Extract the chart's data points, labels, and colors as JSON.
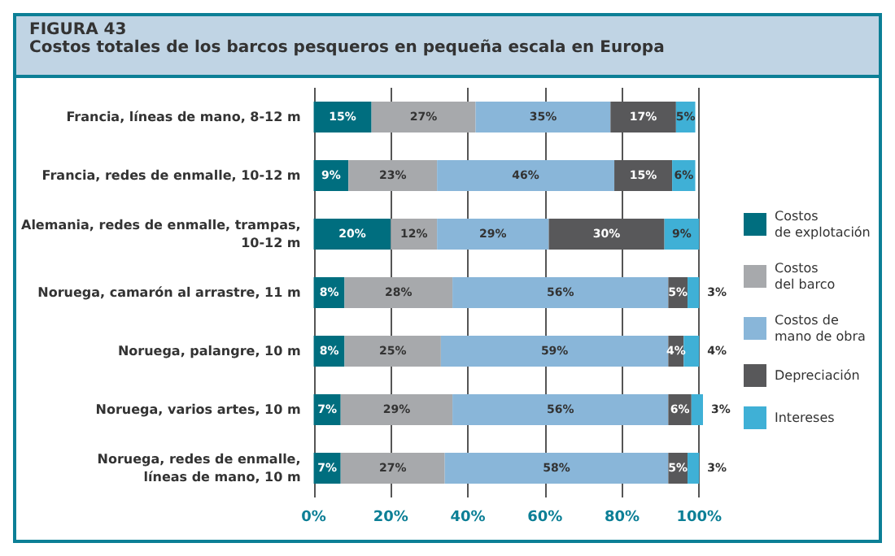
{
  "chart_data": {
    "type": "bar",
    "orientation": "horizontal",
    "stacked": true,
    "title": "FIGURA 43",
    "subtitle": "Costos totales de los barcos pesqueros en pequeña escala en Europa",
    "categories": [
      "Francia, líneas de mano, 8-12 m",
      "Francia, redes de enmalle, 10-12 m",
      "Alemania, redes de enmalle, trampas,\n10-12 m",
      "Noruega, camarón al arrastre, 11 m",
      "Noruega, palangre, 10 m",
      "Noruega, varios artes, 10 m",
      "Noruega, redes de enmalle,\nlíneas de mano, 10 m"
    ],
    "series": [
      {
        "name": "Costos\nde explotación",
        "color": "#006e7f",
        "values": [
          15,
          9,
          20,
          8,
          8,
          7,
          7
        ],
        "value_labels": [
          "15%",
          "9%",
          "20%",
          "8%",
          "8%",
          "7%",
          "7%"
        ]
      },
      {
        "name": "Costos\ndel barco",
        "color": "#a7a9ac",
        "values": [
          27,
          23,
          12,
          28,
          25,
          29,
          27
        ],
        "value_labels": [
          "27%",
          "23%",
          "12%",
          "28%",
          "25%",
          "29%",
          "27%"
        ]
      },
      {
        "name": "Costos de\nmano de obra",
        "color": "#89b6d9",
        "values": [
          35,
          46,
          29,
          56,
          59,
          56,
          58
        ],
        "value_labels": [
          "35%",
          "46%",
          "29%",
          "56%",
          "59%",
          "56%",
          "58%"
        ]
      },
      {
        "name": "Depreciación",
        "color": "#58585a",
        "values": [
          17,
          15,
          30,
          5,
          4,
          6,
          5
        ],
        "value_labels": [
          "17%",
          "15%",
          "30%",
          "5%",
          "4%",
          "6%",
          "5%"
        ]
      },
      {
        "name": "Intereses",
        "color": "#3fb0d6",
        "values": [
          5,
          6,
          9,
          3,
          4,
          3,
          3
        ],
        "value_labels": [
          "5%",
          "6%",
          "9%",
          "3%",
          "4%",
          "3%",
          "3%"
        ]
      }
    ],
    "xlim": [
      0,
      101
    ],
    "xticks": [
      {
        "value": 0,
        "label": "0%"
      },
      {
        "value": 20,
        "label": "20%"
      },
      {
        "value": 40,
        "label": "40%"
      },
      {
        "value": 60,
        "label": "60%"
      },
      {
        "value": 80,
        "label": "80%"
      },
      {
        "value": 100,
        "label": "100%"
      }
    ],
    "grid": "x",
    "legend": "right"
  }
}
